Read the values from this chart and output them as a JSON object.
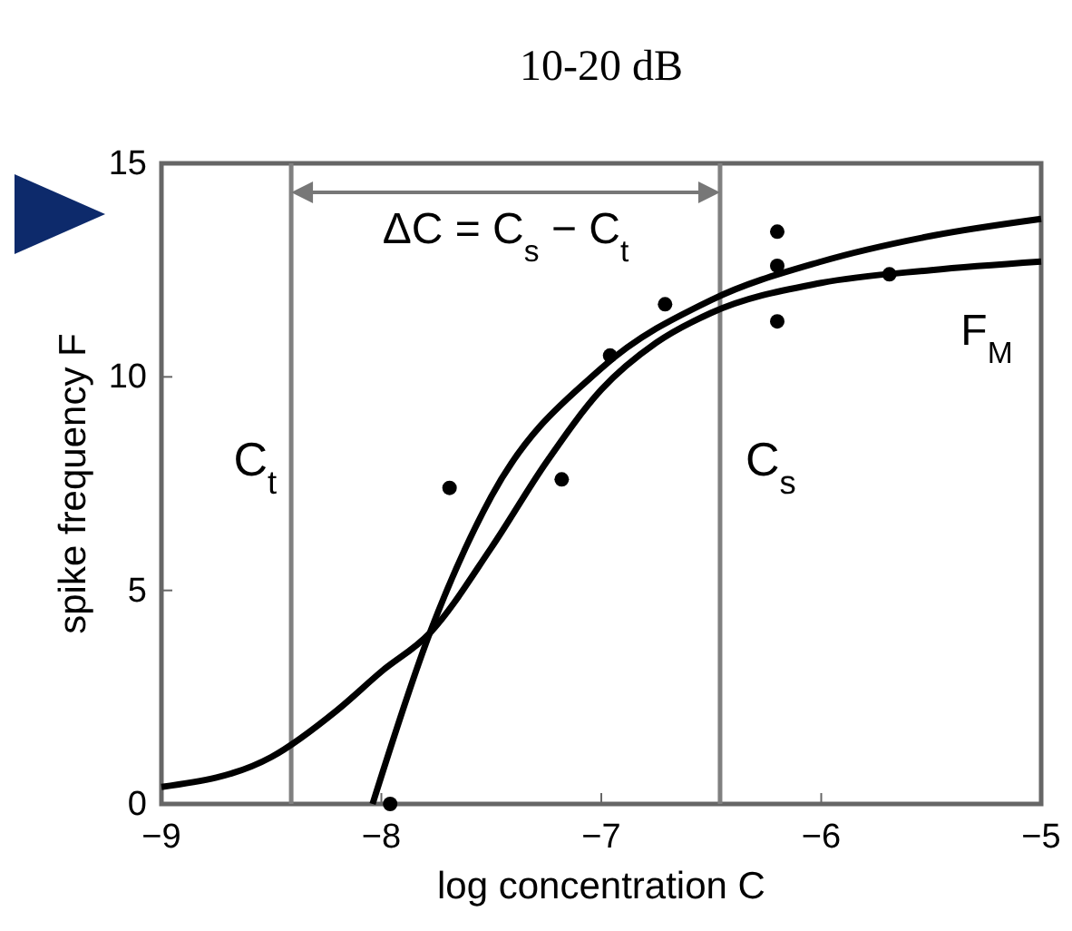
{
  "chart_data": {
    "type": "line",
    "title": "10-20 dB",
    "xlabel": "log concentration C",
    "ylabel": "spike frequency F",
    "xlim": [
      -9,
      -5
    ],
    "ylim": [
      0,
      15
    ],
    "xticks": [
      {
        "value": -9,
        "label": "−9"
      },
      {
        "value": -8,
        "label": "−8"
      },
      {
        "value": -7,
        "label": "−7"
      },
      {
        "value": -6,
        "label": "−6"
      },
      {
        "value": -5,
        "label": "−5"
      }
    ],
    "yticks": [
      0,
      5,
      10,
      15
    ],
    "grid": false,
    "marker": "none",
    "line_style": "solid",
    "series": [
      {
        "color": "#000000",
        "x": [
          -9,
          -8.5,
          -8.2,
          -8,
          -7.78,
          -7.5,
          -7.25,
          -7,
          -6.75,
          -6.5,
          -6,
          -5.5,
          -5
        ],
        "values": [
          0.4,
          1.1,
          2.2,
          3.1,
          4.0,
          6.0,
          8.0,
          9.7,
          10.8,
          11.5,
          12.2,
          12.5,
          12.7
        ]
      },
      {
        "color": "#000000",
        "x": [
          -8.04,
          -7.78,
          -7.5,
          -7,
          -6.5,
          -6,
          -5.5,
          -5
        ],
        "values": [
          0,
          4,
          7.2,
          10.2,
          11.8,
          12.7,
          13.3,
          13.7
        ]
      },
      {
        "type": "scatter",
        "marker": "circle",
        "color": "#000000",
        "x": [
          -7.96,
          -7.69,
          -7.18,
          -6.96,
          -6.71,
          -6.2,
          -6.2,
          -6.2,
          -5.69
        ],
        "values": [
          0,
          7.4,
          7.6,
          10.5,
          11.7,
          11.3,
          12.6,
          13.4,
          12.4
        ]
      }
    ],
    "ref_lines": [
      {
        "axis": "x",
        "value": -8.41,
        "label": "C$_{t}$",
        "color": "#808080"
      },
      {
        "axis": "x",
        "value": -6.46,
        "label": "C$_{s}$",
        "color": "#808080"
      }
    ],
    "annotations": [
      "ΔC = C$_{s}$ − C$_{t}$",
      "F$_{M}$"
    ]
  }
}
